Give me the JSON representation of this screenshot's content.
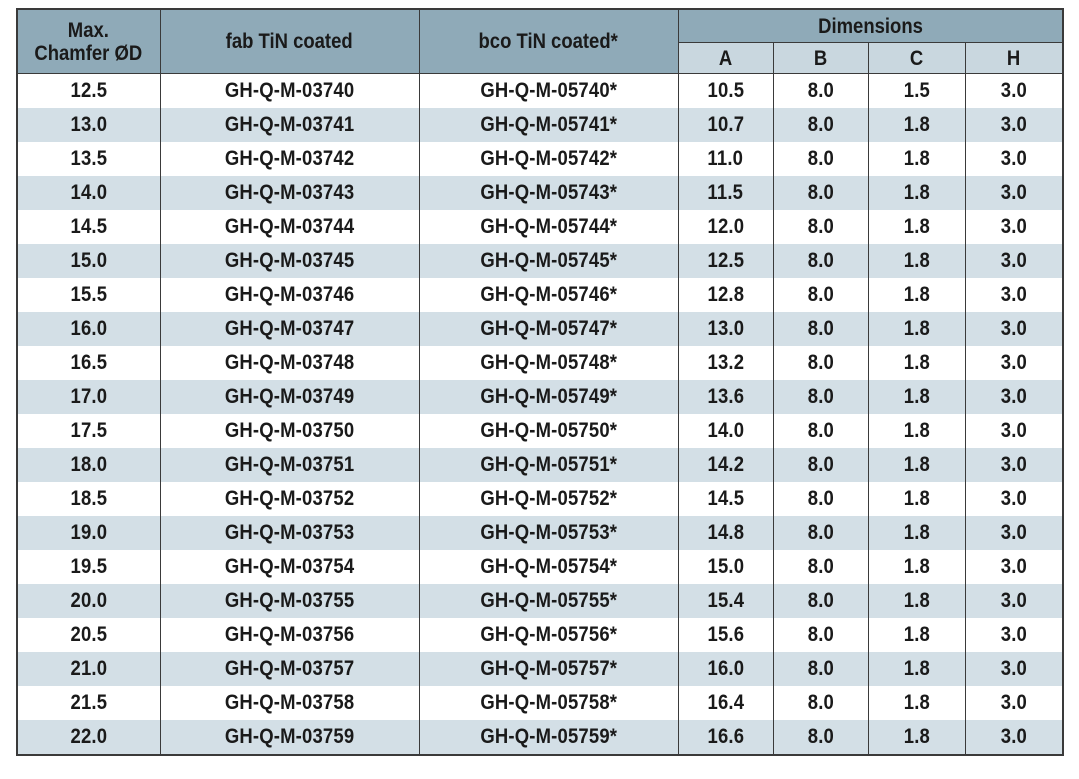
{
  "header": {
    "chamfer_line1": "Max.",
    "chamfer_line2": "Chamfer ØD",
    "fab": "fab TiN coated",
    "bco": "bco TiN coated*",
    "dimensions": "Dimensions",
    "a": "A",
    "b": "B",
    "c": "C",
    "h": "H"
  },
  "rows": [
    {
      "chamfer": "12.5",
      "fab": "GH-Q-M-03740",
      "bco": "GH-Q-M-05740*",
      "a": "10.5",
      "b": "8.0",
      "c": "1.5",
      "h": "3.0"
    },
    {
      "chamfer": "13.0",
      "fab": "GH-Q-M-03741",
      "bco": "GH-Q-M-05741*",
      "a": "10.7",
      "b": "8.0",
      "c": "1.8",
      "h": "3.0"
    },
    {
      "chamfer": "13.5",
      "fab": "GH-Q-M-03742",
      "bco": "GH-Q-M-05742*",
      "a": "11.0",
      "b": "8.0",
      "c": "1.8",
      "h": "3.0"
    },
    {
      "chamfer": "14.0",
      "fab": "GH-Q-M-03743",
      "bco": "GH-Q-M-05743*",
      "a": "11.5",
      "b": "8.0",
      "c": "1.8",
      "h": "3.0"
    },
    {
      "chamfer": "14.5",
      "fab": "GH-Q-M-03744",
      "bco": "GH-Q-M-05744*",
      "a": "12.0",
      "b": "8.0",
      "c": "1.8",
      "h": "3.0"
    },
    {
      "chamfer": "15.0",
      "fab": "GH-Q-M-03745",
      "bco": "GH-Q-M-05745*",
      "a": "12.5",
      "b": "8.0",
      "c": "1.8",
      "h": "3.0"
    },
    {
      "chamfer": "15.5",
      "fab": "GH-Q-M-03746",
      "bco": "GH-Q-M-05746*",
      "a": "12.8",
      "b": "8.0",
      "c": "1.8",
      "h": "3.0"
    },
    {
      "chamfer": "16.0",
      "fab": "GH-Q-M-03747",
      "bco": "GH-Q-M-05747*",
      "a": "13.0",
      "b": "8.0",
      "c": "1.8",
      "h": "3.0"
    },
    {
      "chamfer": "16.5",
      "fab": "GH-Q-M-03748",
      "bco": "GH-Q-M-05748*",
      "a": "13.2",
      "b": "8.0",
      "c": "1.8",
      "h": "3.0"
    },
    {
      "chamfer": "17.0",
      "fab": "GH-Q-M-03749",
      "bco": "GH-Q-M-05749*",
      "a": "13.6",
      "b": "8.0",
      "c": "1.8",
      "h": "3.0"
    },
    {
      "chamfer": "17.5",
      "fab": "GH-Q-M-03750",
      "bco": "GH-Q-M-05750*",
      "a": "14.0",
      "b": "8.0",
      "c": "1.8",
      "h": "3.0"
    },
    {
      "chamfer": "18.0",
      "fab": "GH-Q-M-03751",
      "bco": "GH-Q-M-05751*",
      "a": "14.2",
      "b": "8.0",
      "c": "1.8",
      "h": "3.0"
    },
    {
      "chamfer": "18.5",
      "fab": "GH-Q-M-03752",
      "bco": "GH-Q-M-05752*",
      "a": "14.5",
      "b": "8.0",
      "c": "1.8",
      "h": "3.0"
    },
    {
      "chamfer": "19.0",
      "fab": "GH-Q-M-03753",
      "bco": "GH-Q-M-05753*",
      "a": "14.8",
      "b": "8.0",
      "c": "1.8",
      "h": "3.0"
    },
    {
      "chamfer": "19.5",
      "fab": "GH-Q-M-03754",
      "bco": "GH-Q-M-05754*",
      "a": "15.0",
      "b": "8.0",
      "c": "1.8",
      "h": "3.0"
    },
    {
      "chamfer": "20.0",
      "fab": "GH-Q-M-03755",
      "bco": "GH-Q-M-05755*",
      "a": "15.4",
      "b": "8.0",
      "c": "1.8",
      "h": "3.0"
    },
    {
      "chamfer": "20.5",
      "fab": "GH-Q-M-03756",
      "bco": "GH-Q-M-05756*",
      "a": "15.6",
      "b": "8.0",
      "c": "1.8",
      "h": "3.0"
    },
    {
      "chamfer": "21.0",
      "fab": "GH-Q-M-03757",
      "bco": "GH-Q-M-05757*",
      "a": "16.0",
      "b": "8.0",
      "c": "1.8",
      "h": "3.0"
    },
    {
      "chamfer": "21.5",
      "fab": "GH-Q-M-03758",
      "bco": "GH-Q-M-05758*",
      "a": "16.4",
      "b": "8.0",
      "c": "1.8",
      "h": "3.0"
    },
    {
      "chamfer": "22.0",
      "fab": "GH-Q-M-03759",
      "bco": "GH-Q-M-05759*",
      "a": "16.6",
      "b": "8.0",
      "c": "1.8",
      "h": "3.0"
    }
  ],
  "colors": {
    "header_bg": "#8faab8",
    "subheader_bg": "#c9d7df",
    "stripe_bg": "#d3dfe6",
    "row_bg": "#ffffff",
    "border": "#3a3a3a",
    "text": "#1a1a1a"
  }
}
